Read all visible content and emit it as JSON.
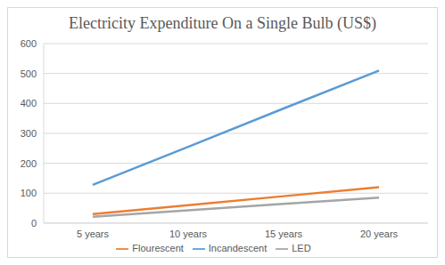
{
  "chart_data": {
    "type": "line",
    "title": "Electricity Expenditure On a Single Bulb (US$)",
    "categories": [
      "5 years",
      "10 years",
      "15 years",
      "20 years"
    ],
    "series": [
      {
        "name": "Incandescent",
        "color": "#5b9bd5",
        "values": [
          128,
          255,
          383,
          510
        ]
      },
      {
        "name": "Flourescent",
        "color": "#ed7d31",
        "values": [
          30,
          60,
          90,
          120
        ]
      },
      {
        "name": "LED",
        "color": "#a5a5a5",
        "values": [
          21,
          43,
          64,
          85
        ]
      }
    ],
    "ylim": [
      0,
      600
    ],
    "yticks": [
      0,
      100,
      200,
      300,
      400,
      500,
      600
    ],
    "grid": true,
    "legend": "bottom"
  }
}
